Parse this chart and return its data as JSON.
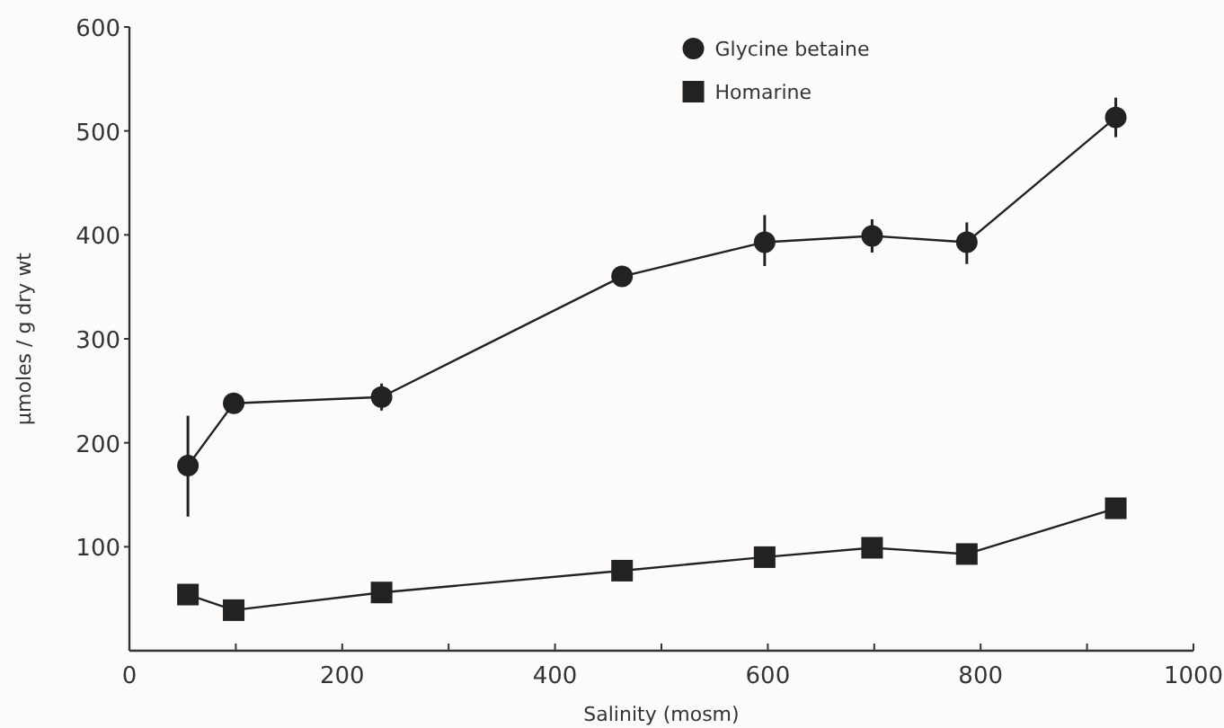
{
  "chart_data": {
    "type": "line",
    "xlabel": "Salinity (mosm)",
    "ylabel": "µmoles / g dry wt",
    "x": [
      55,
      98,
      237,
      463,
      597,
      698,
      787,
      927
    ],
    "series": [
      {
        "name": "Glycine betaine",
        "color": "#222222",
        "marker": "circle",
        "values": [
          178,
          238,
          244,
          360,
          393,
          399,
          393,
          513
        ],
        "errors": [
          [
            129,
            226
          ],
          null,
          [
            231,
            257
          ],
          null,
          [
            370,
            419
          ],
          [
            383,
            415
          ],
          [
            372,
            412
          ],
          [
            494,
            532
          ]
        ]
      },
      {
        "name": "Homarine",
        "color": "#222222",
        "marker": "square",
        "values": [
          54,
          39,
          56,
          77,
          90,
          99,
          93,
          137
        ]
      }
    ],
    "xlim": [
      0,
      1000
    ],
    "xticks": [
      0,
      {
        "value": 100,
        "label": null
      },
      200,
      {
        "value": 300,
        "label": null
      },
      400,
      {
        "value": 500,
        "label": null
      },
      600,
      {
        "value": 700,
        "label": null
      },
      800,
      {
        "value": 900,
        "label": null
      },
      1000
    ],
    "ylim": [
      0,
      600
    ],
    "yticks": [
      100,
      200,
      300,
      400,
      500,
      600
    ],
    "legend": "top",
    "grid": false,
    "line_style": "solid"
  }
}
